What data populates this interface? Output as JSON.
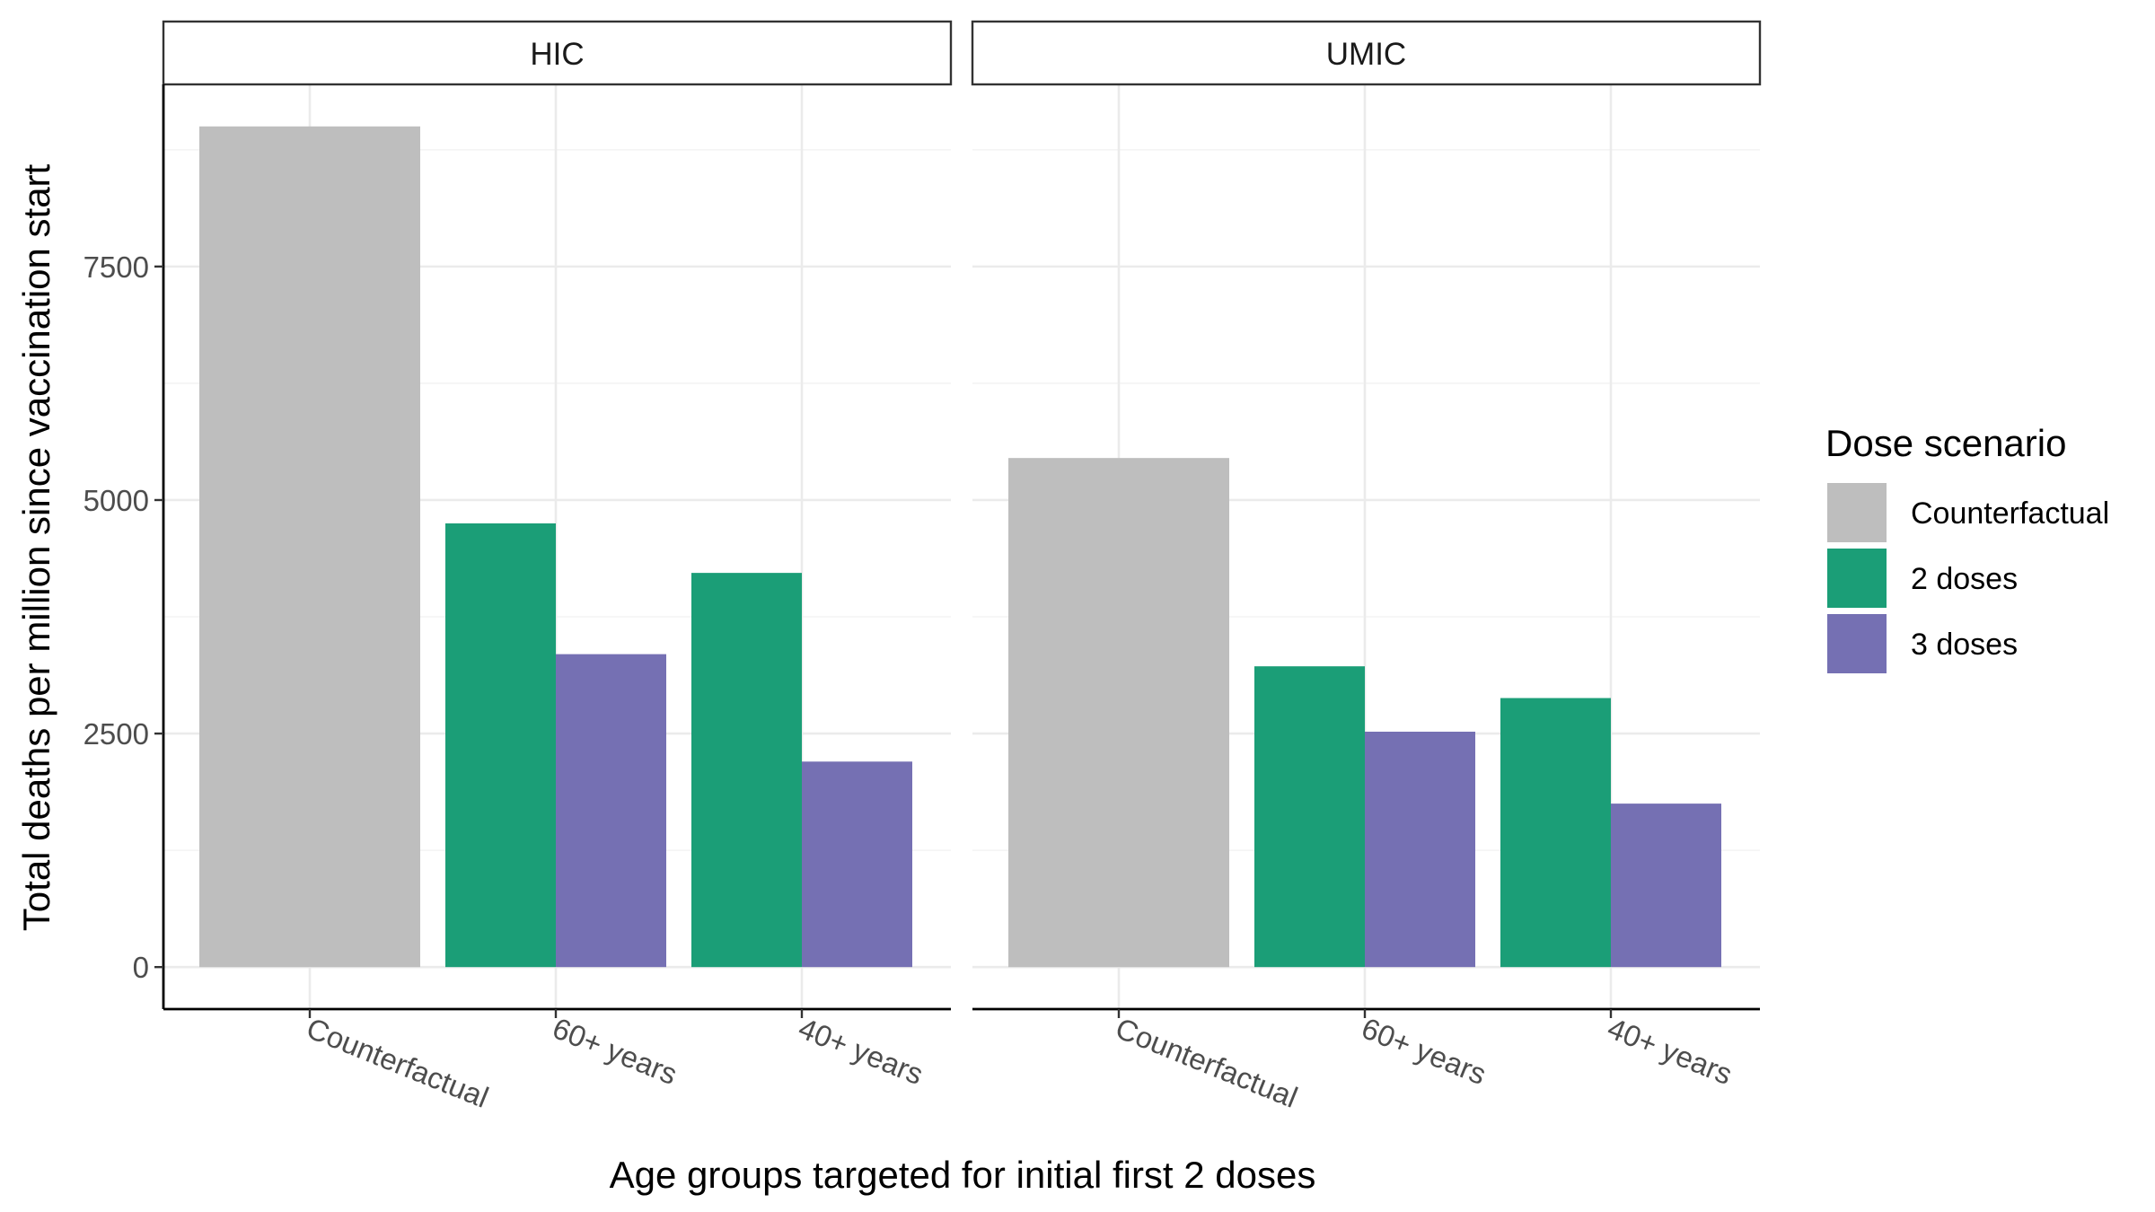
{
  "chart_data": {
    "type": "bar",
    "xlabel": "Age groups targeted for initial first 2 doses",
    "ylabel": "Total deaths per million since vaccination start",
    "categories": [
      "Counterfactual",
      "60+ years",
      "40+ years"
    ],
    "yticks": [
      0,
      2500,
      5000,
      7500
    ],
    "ylim": [
      -450,
      9450
    ],
    "grid": true,
    "legend": {
      "title": "Dose scenario",
      "position": "right",
      "entries": [
        {
          "label": "Counterfactual",
          "color": "#bebebe"
        },
        {
          "label": "2 doses",
          "color": "#1b9e77"
        },
        {
          "label": "3 doses",
          "color": "#7570b3"
        }
      ]
    },
    "panels": [
      {
        "label": "HIC",
        "bars": [
          {
            "category": "Counterfactual",
            "series": "Counterfactual",
            "value": 9000
          },
          {
            "category": "60+ years",
            "series": "2 doses",
            "value": 4750
          },
          {
            "category": "60+ years",
            "series": "3 doses",
            "value": 3350
          },
          {
            "category": "40+ years",
            "series": "2 doses",
            "value": 4220
          },
          {
            "category": "40+ years",
            "series": "3 doses",
            "value": 2200
          }
        ]
      },
      {
        "label": "UMIC",
        "bars": [
          {
            "category": "Counterfactual",
            "series": "Counterfactual",
            "value": 5450
          },
          {
            "category": "60+ years",
            "series": "2 doses",
            "value": 3220
          },
          {
            "category": "60+ years",
            "series": "3 doses",
            "value": 2520
          },
          {
            "category": "40+ years",
            "series": "2 doses",
            "value": 2880
          },
          {
            "category": "40+ years",
            "series": "3 doses",
            "value": 1750
          }
        ]
      }
    ]
  }
}
